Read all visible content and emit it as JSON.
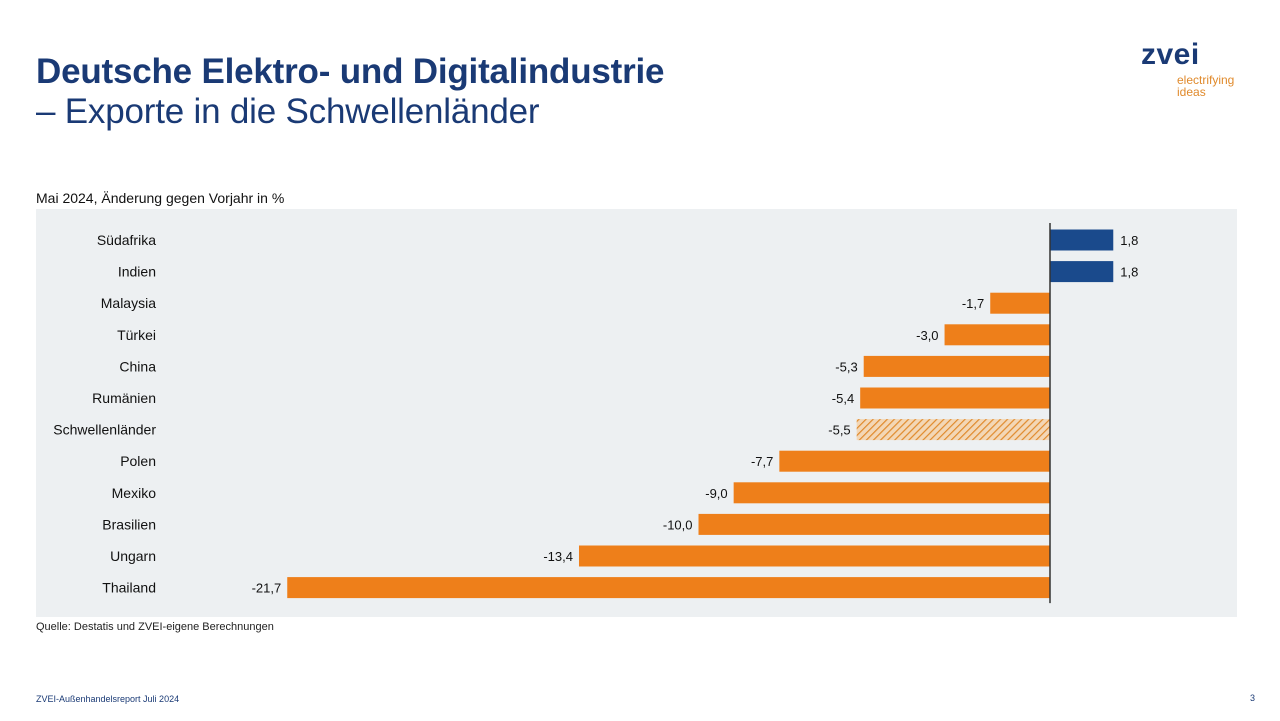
{
  "header": {
    "title_line1": "Deutsche Elektro- und Digitalindustrie",
    "title_line2": "– Exporte in die Schwellenländer"
  },
  "logo": {
    "word": "zvei",
    "tagline_line1": "electrifying",
    "tagline_line2": "ideas"
  },
  "colors": {
    "brand_blue": "#1a4a8c",
    "brand_orange": "#ee7f1a",
    "panel_bg": "#edf0f2"
  },
  "chart_data": {
    "type": "bar",
    "orientation": "horizontal",
    "title": "Mai 2024, Änderung gegen Vorjahr in %",
    "xlabel": "",
    "ylabel": "",
    "categories": [
      "Südafrika",
      "Indien",
      "Malaysia",
      "Türkei",
      "China",
      "Rumänien",
      "Schwellenländer",
      "Polen",
      "Mexiko",
      "Brasilien",
      "Ungarn",
      "Thailand"
    ],
    "values": [
      1.8,
      1.8,
      -1.7,
      -3.0,
      -5.3,
      -5.4,
      -5.5,
      -7.7,
      -9.0,
      -10.0,
      -13.4,
      -21.7
    ],
    "value_labels": [
      "1,8",
      "1,8",
      "-1,7",
      "-3,0",
      "-5,3",
      "-5,4",
      "-5,5",
      "-7,7",
      "-9,0",
      "-10,0",
      "-13,4",
      "-21,7"
    ],
    "styles": [
      "positive",
      "positive",
      "negative",
      "negative",
      "negative",
      "negative",
      "aggregate-hatched",
      "negative",
      "negative",
      "negative",
      "negative",
      "negative"
    ],
    "xlim": [
      -22,
      5
    ],
    "grid": false,
    "legend": "none"
  },
  "source": "Quelle: Destatis und ZVEI-eigene Berechnungen",
  "footer": {
    "report": "ZVEI-Außenhandelsreport Juli 2024",
    "page": "3"
  }
}
